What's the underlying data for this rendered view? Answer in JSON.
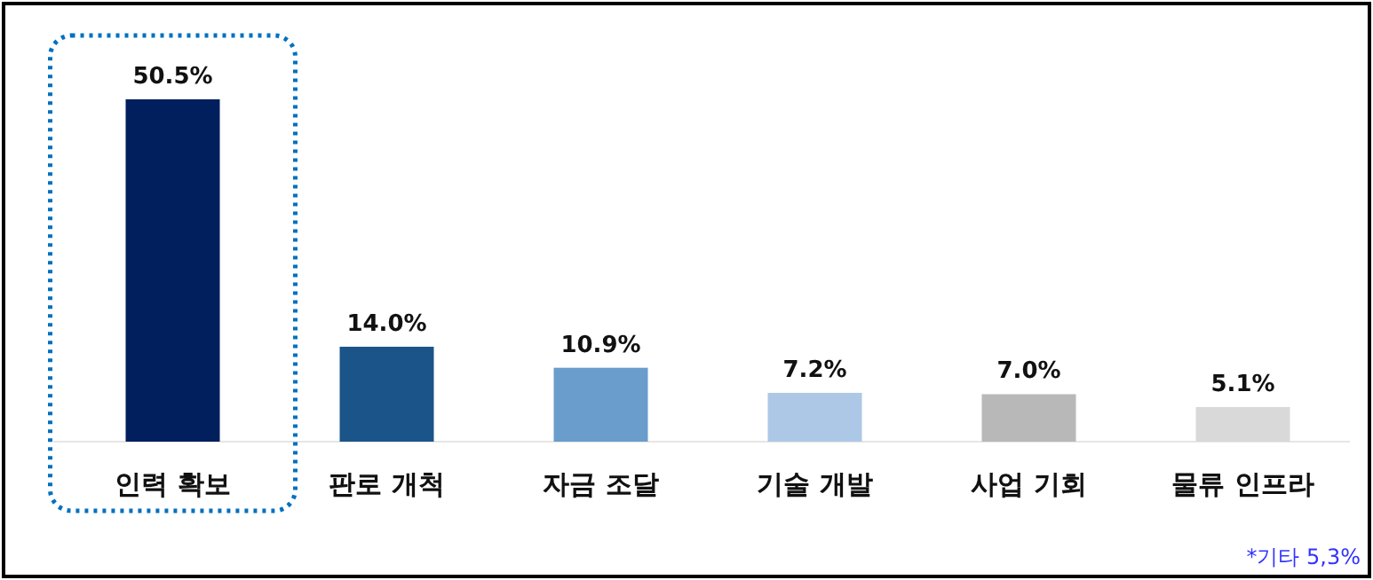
{
  "chart_data": {
    "type": "bar",
    "categories": [
      "인력 확보",
      "판로 개척",
      "자금 조달",
      "기술 개발",
      "사업 기회",
      "물류 인프라"
    ],
    "values": [
      50.5,
      14.0,
      10.9,
      7.2,
      7.0,
      5.1
    ],
    "colors": [
      "#001f5c",
      "#1a5488",
      "#6a9ccc",
      "#adc8e6",
      "#b8b8b8",
      "#d9d9d9"
    ],
    "value_labels": [
      "50.5%",
      "14.0%",
      "10.9%",
      "7.2%",
      "7.0%",
      "5.1%"
    ],
    "annotations": [
      "*기타 5,3%"
    ]
  }
}
